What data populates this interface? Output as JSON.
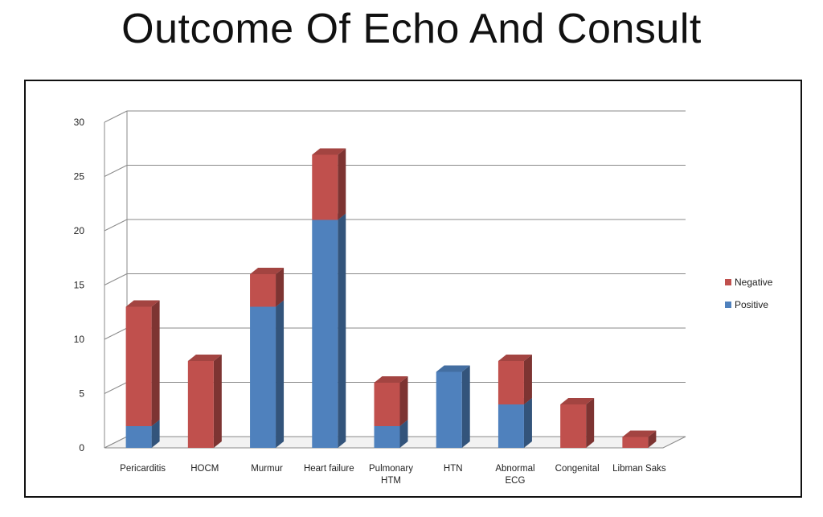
{
  "slide": {
    "title": "Outcome Of Echo And Consult"
  },
  "chart_data": {
    "type": "bar",
    "stacked": true,
    "three_d": true,
    "categories": [
      [
        "Pericarditis"
      ],
      [
        "HOCM"
      ],
      [
        "Murmur"
      ],
      [
        "Heart failure"
      ],
      [
        "Pulmonary",
        "HTM"
      ],
      [
        "HTN"
      ],
      [
        "Abnormal",
        "ECG"
      ],
      [
        "Congenital"
      ],
      [
        "Libman Saks"
      ]
    ],
    "series": [
      {
        "name": "Positive",
        "values": [
          2,
          0,
          13,
          21,
          2,
          7,
          4,
          0,
          0
        ],
        "color": "#4f81bd"
      },
      {
        "name": "Negative",
        "values": [
          11,
          8,
          3,
          6,
          4,
          0,
          4,
          4,
          1
        ],
        "color": "#c0504d"
      }
    ],
    "ylim": [
      0,
      30
    ],
    "yticks": [
      0,
      5,
      10,
      15,
      20,
      25,
      30
    ],
    "grid": true,
    "legend": {
      "position": "right",
      "order": [
        "Negative",
        "Positive"
      ]
    },
    "xlabel": "",
    "ylabel": ""
  }
}
